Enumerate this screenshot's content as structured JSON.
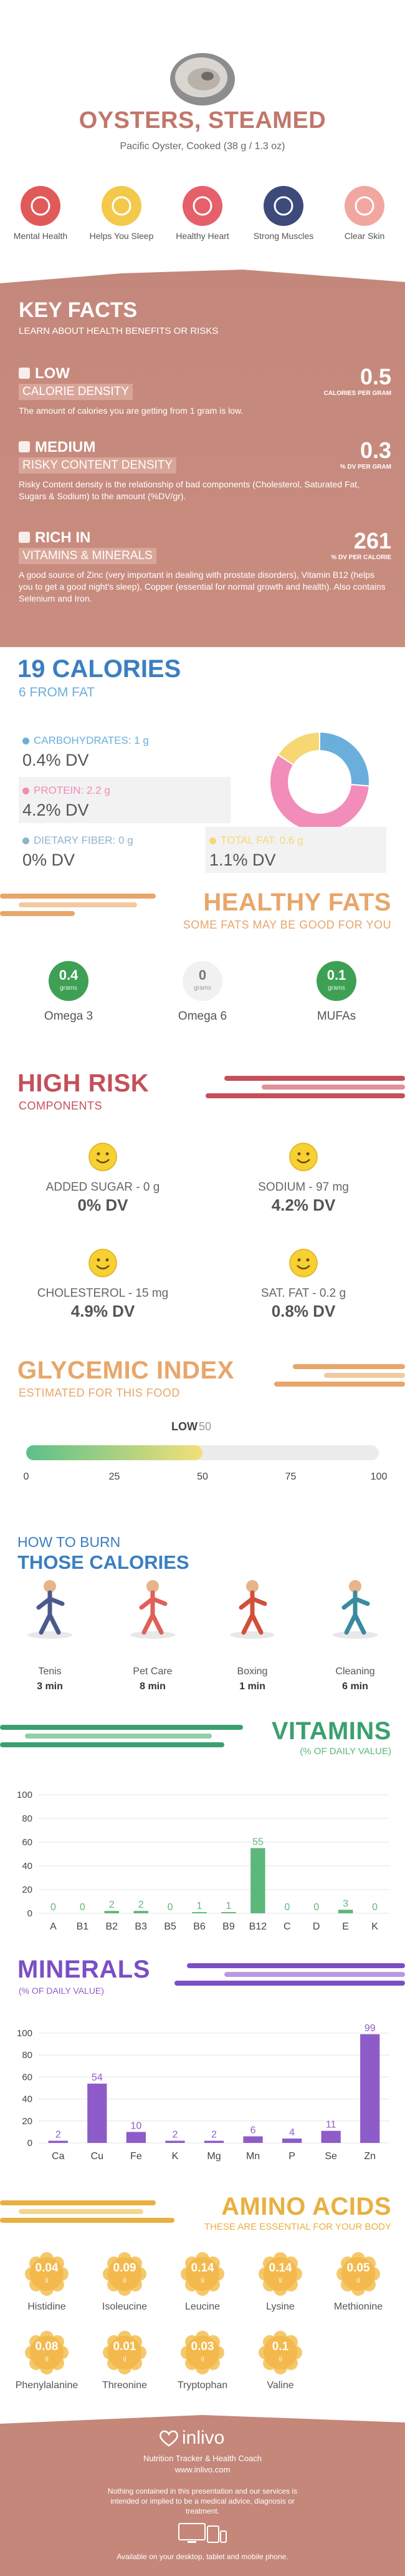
{
  "header": {
    "title": "OYSTERS, STEAMED",
    "subtitle": "Pacific Oyster, Cooked (38 g / 1.3 oz)"
  },
  "benefits": [
    "Mental Health",
    "Helps You Sleep",
    "Healthy Heart",
    "Strong Muscles",
    "Clear Skin"
  ],
  "key_facts": {
    "title": "KEY FACTS",
    "subtitle": "LEARN ABOUT HEALTH BENEFITS OR RISKS",
    "items": [
      {
        "level": "LOW",
        "name": "CALORIE DENSITY",
        "value": "0.5",
        "unit": "CALORIES PER GRAM",
        "text": "The amount of calories you are getting from 1 gram is low."
      },
      {
        "level": "MEDIUM",
        "name": "RISKY CONTENT DENSITY",
        "value": "0.3",
        "unit": "% DV PER GRAM",
        "text": "Risky Content density is the relationship of bad components (Cholesterol, Saturated Fat, Sugars & Sodium) to the amount (%DV/gr)."
      },
      {
        "level": "RICH IN",
        "name": "VITAMINS & MINERALS",
        "value": "261",
        "unit": "% DV PER CALORIE",
        "text": "A good source of Zinc (very important in dealing with prostate disorders), Vitamin B12 (helps you to get a good night's sleep), Copper (essential for normal growth and health). Also contains Selenium and Iron."
      }
    ]
  },
  "calories": {
    "title": "19 CALORIES",
    "subtitle": "6 FROM FAT",
    "nutrients": [
      {
        "label": "CARBOHYDRATES: 1 g",
        "dv": "0.4% DV",
        "grams": 1,
        "color": "#6aaedc"
      },
      {
        "label": "PROTEIN: 2.2 g",
        "dv": "4.2% DV",
        "grams": 2.2,
        "color": "#f28cb8"
      },
      {
        "label": "DIETARY FIBER: 0 g",
        "dv": "0% DV",
        "grams": 0,
        "color": "#8fb3cc"
      },
      {
        "label": "TOTAL FAT: 0.6 g",
        "dv": "1.1% DV",
        "grams": 0.6,
        "color": "#f7d774"
      }
    ]
  },
  "healthy_fats": {
    "title": "HEALTHY FATS",
    "subtitle": "SOME FATS MAY BE GOOD FOR YOU",
    "items": [
      {
        "value": "0.4",
        "unit": "grams",
        "name": "Omega 3"
      },
      {
        "value": "0",
        "unit": "grams",
        "name": "Omega 6"
      },
      {
        "value": "0.1",
        "unit": "grams",
        "name": "MUFAs"
      }
    ]
  },
  "high_risk": {
    "title": "HIGH RISK",
    "subtitle": "COMPONENTS",
    "items": [
      {
        "name": "ADDED SUGAR - 0 g",
        "dv": "0% DV"
      },
      {
        "name": "SODIUM - 97 mg",
        "dv": "4.2% DV"
      },
      {
        "name": "CHOLESTEROL - 15 mg",
        "dv": "4.9% DV"
      },
      {
        "name": "SAT. FAT - 0.2 g",
        "dv": "0.8% DV"
      }
    ]
  },
  "glycemic": {
    "title": "GLYCEMIC INDEX",
    "subtitle": "ESTIMATED FOR THIS FOOD",
    "level": "LOW",
    "value": 50,
    "xlim": [
      0,
      100
    ],
    "xticks": [
      0,
      25,
      50,
      75,
      100
    ]
  },
  "burn": {
    "title_top": "HOW TO BURN",
    "title": "THOSE CALORIES",
    "items": [
      {
        "name": "Tenis",
        "time": "3 min"
      },
      {
        "name": "Pet Care",
        "time": "8 min"
      },
      {
        "name": "Boxing",
        "time": "1 min"
      },
      {
        "name": "Cleaning",
        "time": "6 min"
      }
    ]
  },
  "chart_data": [
    {
      "type": "bar",
      "title": "VITAMINS",
      "subtitle": "(% OF DAILY VALUE)",
      "categories": [
        "A",
        "B1",
        "B2",
        "B3",
        "B5",
        "B6",
        "B9",
        "B12",
        "C",
        "D",
        "E",
        "K"
      ],
      "values": [
        0,
        0,
        2,
        2,
        0,
        1,
        1,
        55,
        0,
        0,
        3,
        0
      ],
      "color": "#5cb87a",
      "ylim": [
        0,
        100
      ],
      "yticks": [
        0,
        20,
        40,
        60,
        80,
        100
      ],
      "grid": true
    },
    {
      "type": "bar",
      "title": "MINERALS",
      "subtitle": "(% OF DAILY VALUE)",
      "categories": [
        "Ca",
        "Cu",
        "Fe",
        "K",
        "Mg",
        "Mn",
        "P",
        "Se",
        "Zn"
      ],
      "values": [
        2,
        54,
        10,
        2,
        2,
        6,
        4,
        11,
        99
      ],
      "color": "#8e5cc9",
      "ylim": [
        0,
        100
      ],
      "yticks": [
        0,
        20,
        40,
        60,
        80,
        100
      ],
      "grid": true
    }
  ],
  "amino_acids": {
    "title": "AMINO ACIDS",
    "subtitle": "THESE ARE ESSENTIAL FOR YOUR BODY",
    "items": [
      {
        "value": "0.04",
        "unit": "g",
        "name": "Histidine"
      },
      {
        "value": "0.09",
        "unit": "g",
        "name": "Isoleucine"
      },
      {
        "value": "0.14",
        "unit": "g",
        "name": "Leucine"
      },
      {
        "value": "0.14",
        "unit": "g",
        "name": "Lysine"
      },
      {
        "value": "0.05",
        "unit": "g",
        "name": "Methionine"
      },
      {
        "value": "0.08",
        "unit": "g",
        "name": "Phenylalanine"
      },
      {
        "value": "0.01",
        "unit": "g",
        "name": "Threonine"
      },
      {
        "value": "0.03",
        "unit": "g",
        "name": "Tryptophan"
      },
      {
        "value": "0.1",
        "unit": "g",
        "name": "Valine"
      }
    ]
  },
  "footer": {
    "brand": "inlivo",
    "tagline": "Nutrition Tracker & Health Coach",
    "url": "www.inlivo.com",
    "disclaimer": "Nothing contained in this presentation and our services is intended or implied to be a medical advice, diagnosis or treatment.",
    "available": "Available on your desktop, tablet and mobile phone."
  }
}
